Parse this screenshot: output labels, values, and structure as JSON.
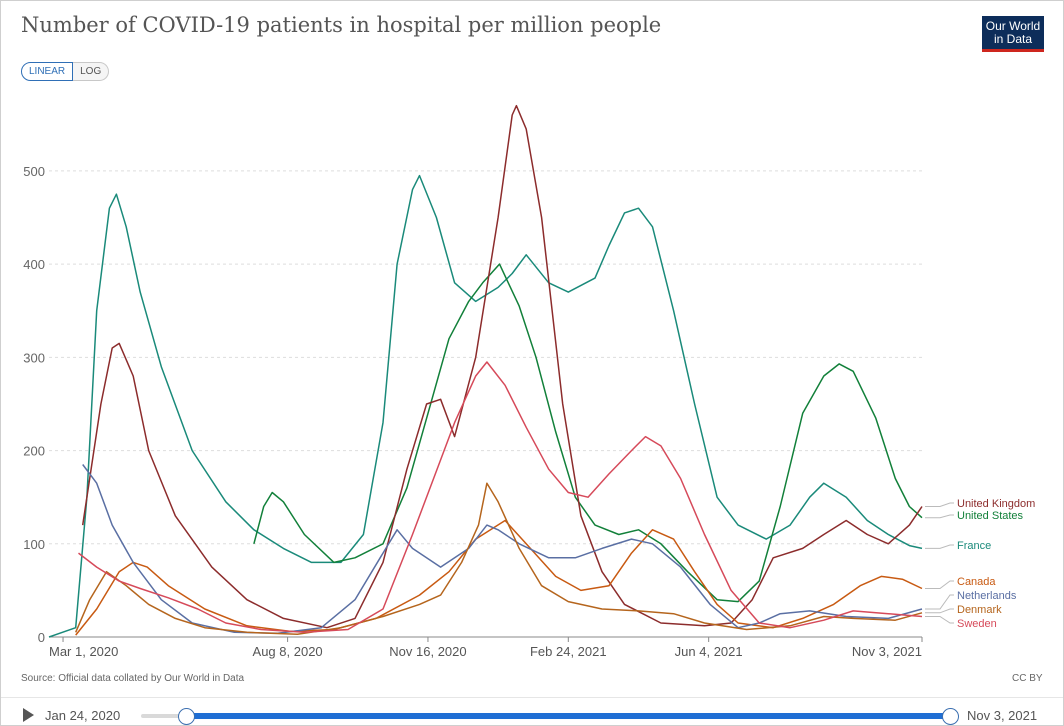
{
  "title": "Number of COVID-19 patients in hospital per million people",
  "logo": {
    "line1": "Our World",
    "line2": "in Data"
  },
  "scale_toggle": {
    "linear": "LINEAR",
    "log": "LOG",
    "selected": "LINEAR"
  },
  "source": "Source: Official data collated by Our World in Data",
  "license": "CC BY",
  "timeline": {
    "start_label": "Jan 24, 2020",
    "end_label": "Nov 3, 2021",
    "play_icon": "play-icon"
  },
  "colors": {
    "United Kingdom": "#8c2c2c",
    "United States": "#12803a",
    "France": "#1a8a7a",
    "Canada": "#c85a12",
    "Netherlands": "#5a6fa3",
    "Denmark": "#b5651d",
    "Sweden": "#d64a5a"
  },
  "chart_data": {
    "type": "line",
    "xlabel": "",
    "ylabel": "",
    "x_range": [
      "2020-02-20",
      "2021-11-03"
    ],
    "ylim": [
      0,
      575
    ],
    "yticks": [
      0,
      100,
      200,
      300,
      400,
      500
    ],
    "xticks": [
      "Mar 1, 2020",
      "Aug 8, 2020",
      "Nov 16, 2020",
      "Feb 24, 2021",
      "Jun 4, 2021",
      "Nov 3, 2021"
    ],
    "xtick_dates": [
      "2020-03-01",
      "2020-08-08",
      "2020-11-16",
      "2021-02-24",
      "2021-06-04",
      "2021-11-03"
    ],
    "grid": "horizontal dashed",
    "legend": "right, line-end labels",
    "series": [
      {
        "name": "France",
        "points": [
          [
            "2020-02-20",
            0
          ],
          [
            "2020-03-10",
            10
          ],
          [
            "2020-03-18",
            150
          ],
          [
            "2020-03-25",
            350
          ],
          [
            "2020-04-03",
            460
          ],
          [
            "2020-04-08",
            475
          ],
          [
            "2020-04-15",
            440
          ],
          [
            "2020-04-25",
            370
          ],
          [
            "2020-05-10",
            290
          ],
          [
            "2020-06-01",
            200
          ],
          [
            "2020-06-25",
            145
          ],
          [
            "2020-07-15",
            115
          ],
          [
            "2020-08-05",
            95
          ],
          [
            "2020-08-25",
            80
          ],
          [
            "2020-09-15",
            80
          ],
          [
            "2020-10-01",
            110
          ],
          [
            "2020-10-15",
            230
          ],
          [
            "2020-10-25",
            400
          ],
          [
            "2020-11-05",
            480
          ],
          [
            "2020-11-10",
            495
          ],
          [
            "2020-11-22",
            450
          ],
          [
            "2020-12-05",
            380
          ],
          [
            "2020-12-20",
            360
          ],
          [
            "2021-01-05",
            375
          ],
          [
            "2021-01-15",
            390
          ],
          [
            "2021-01-25",
            410
          ],
          [
            "2021-02-10",
            380
          ],
          [
            "2021-02-24",
            370
          ],
          [
            "2021-03-15",
            385
          ],
          [
            "2021-03-25",
            420
          ],
          [
            "2021-04-05",
            455
          ],
          [
            "2021-04-15",
            460
          ],
          [
            "2021-04-25",
            440
          ],
          [
            "2021-05-10",
            350
          ],
          [
            "2021-05-25",
            250
          ],
          [
            "2021-06-10",
            150
          ],
          [
            "2021-06-25",
            120
          ],
          [
            "2021-07-15",
            105
          ],
          [
            "2021-08-01",
            120
          ],
          [
            "2021-08-15",
            150
          ],
          [
            "2021-08-25",
            165
          ],
          [
            "2021-09-10",
            150
          ],
          [
            "2021-09-25",
            125
          ],
          [
            "2021-10-10",
            110
          ],
          [
            "2021-10-25",
            98
          ],
          [
            "2021-11-03",
            95
          ]
        ]
      },
      {
        "name": "United States",
        "points": [
          [
            "2020-07-15",
            100
          ],
          [
            "2020-07-22",
            140
          ],
          [
            "2020-07-28",
            155
          ],
          [
            "2020-08-05",
            145
          ],
          [
            "2020-08-20",
            110
          ],
          [
            "2020-09-10",
            80
          ],
          [
            "2020-09-25",
            85
          ],
          [
            "2020-10-15",
            100
          ],
          [
            "2020-11-01",
            160
          ],
          [
            "2020-11-16",
            240
          ],
          [
            "2020-12-01",
            320
          ],
          [
            "2020-12-15",
            360
          ],
          [
            "2020-12-25",
            380
          ],
          [
            "2021-01-06",
            400
          ],
          [
            "2021-01-20",
            355
          ],
          [
            "2021-02-01",
            300
          ],
          [
            "2021-02-15",
            220
          ],
          [
            "2021-03-01",
            150
          ],
          [
            "2021-03-15",
            120
          ],
          [
            "2021-04-01",
            110
          ],
          [
            "2021-04-15",
            115
          ],
          [
            "2021-05-01",
            100
          ],
          [
            "2021-05-20",
            70
          ],
          [
            "2021-06-10",
            40
          ],
          [
            "2021-06-25",
            38
          ],
          [
            "2021-07-10",
            60
          ],
          [
            "2021-07-25",
            140
          ],
          [
            "2021-08-10",
            240
          ],
          [
            "2021-08-25",
            280
          ],
          [
            "2021-09-05",
            293
          ],
          [
            "2021-09-15",
            285
          ],
          [
            "2021-10-01",
            235
          ],
          [
            "2021-10-15",
            170
          ],
          [
            "2021-10-25",
            140
          ],
          [
            "2021-11-03",
            128
          ]
        ]
      },
      {
        "name": "United Kingdom",
        "points": [
          [
            "2020-03-15",
            120
          ],
          [
            "2020-03-28",
            250
          ],
          [
            "2020-04-05",
            310
          ],
          [
            "2020-04-10",
            315
          ],
          [
            "2020-04-20",
            280
          ],
          [
            "2020-05-01",
            200
          ],
          [
            "2020-05-20",
            130
          ],
          [
            "2020-06-15",
            75
          ],
          [
            "2020-07-10",
            40
          ],
          [
            "2020-08-05",
            20
          ],
          [
            "2020-09-05",
            10
          ],
          [
            "2020-09-25",
            20
          ],
          [
            "2020-10-15",
            80
          ],
          [
            "2020-11-01",
            180
          ],
          [
            "2020-11-15",
            250
          ],
          [
            "2020-11-25",
            255
          ],
          [
            "2020-12-05",
            215
          ],
          [
            "2020-12-20",
            300
          ],
          [
            "2021-01-05",
            450
          ],
          [
            "2021-01-15",
            560
          ],
          [
            "2021-01-18",
            570
          ],
          [
            "2021-01-25",
            545
          ],
          [
            "2021-02-05",
            450
          ],
          [
            "2021-02-20",
            250
          ],
          [
            "2021-03-05",
            130
          ],
          [
            "2021-03-20",
            70
          ],
          [
            "2021-04-05",
            35
          ],
          [
            "2021-05-01",
            15
          ],
          [
            "2021-06-01",
            12
          ],
          [
            "2021-06-20",
            15
          ],
          [
            "2021-07-05",
            40
          ],
          [
            "2021-07-20",
            85
          ],
          [
            "2021-08-10",
            95
          ],
          [
            "2021-08-25",
            110
          ],
          [
            "2021-09-10",
            125
          ],
          [
            "2021-09-25",
            110
          ],
          [
            "2021-10-10",
            100
          ],
          [
            "2021-10-25",
            120
          ],
          [
            "2021-11-03",
            140
          ]
        ]
      },
      {
        "name": "Canada",
        "points": [
          [
            "2020-03-10",
            2
          ],
          [
            "2020-03-25",
            30
          ],
          [
            "2020-04-10",
            70
          ],
          [
            "2020-04-20",
            80
          ],
          [
            "2020-04-30",
            75
          ],
          [
            "2020-05-15",
            55
          ],
          [
            "2020-06-10",
            30
          ],
          [
            "2020-07-10",
            12
          ],
          [
            "2020-08-10",
            6
          ],
          [
            "2020-09-10",
            8
          ],
          [
            "2020-10-10",
            20
          ],
          [
            "2020-11-10",
            45
          ],
          [
            "2020-12-01",
            70
          ],
          [
            "2020-12-20",
            105
          ],
          [
            "2021-01-10",
            125
          ],
          [
            "2021-01-25",
            100
          ],
          [
            "2021-02-15",
            65
          ],
          [
            "2021-03-05",
            50
          ],
          [
            "2021-03-25",
            55
          ],
          [
            "2021-04-10",
            90
          ],
          [
            "2021-04-25",
            115
          ],
          [
            "2021-05-10",
            105
          ],
          [
            "2021-05-25",
            70
          ],
          [
            "2021-06-10",
            35
          ],
          [
            "2021-06-25",
            15
          ],
          [
            "2021-07-20",
            10
          ],
          [
            "2021-08-10",
            20
          ],
          [
            "2021-09-01",
            35
          ],
          [
            "2021-09-20",
            55
          ],
          [
            "2021-10-05",
            65
          ],
          [
            "2021-10-20",
            62
          ],
          [
            "2021-11-03",
            52
          ]
        ]
      },
      {
        "name": "Netherlands",
        "points": [
          [
            "2020-03-15",
            185
          ],
          [
            "2020-03-25",
            165
          ],
          [
            "2020-04-05",
            120
          ],
          [
            "2020-04-20",
            80
          ],
          [
            "2020-05-10",
            40
          ],
          [
            "2020-06-01",
            15
          ],
          [
            "2020-07-01",
            5
          ],
          [
            "2020-08-01",
            4
          ],
          [
            "2020-09-01",
            10
          ],
          [
            "2020-09-25",
            40
          ],
          [
            "2020-10-15",
            90
          ],
          [
            "2020-10-25",
            115
          ],
          [
            "2020-11-05",
            95
          ],
          [
            "2020-11-25",
            75
          ],
          [
            "2020-12-15",
            95
          ],
          [
            "2020-12-28",
            120
          ],
          [
            "2021-01-05",
            115
          ],
          [
            "2021-01-20",
            100
          ],
          [
            "2021-02-10",
            85
          ],
          [
            "2021-03-01",
            85
          ],
          [
            "2021-03-20",
            95
          ],
          [
            "2021-04-10",
            105
          ],
          [
            "2021-04-25",
            100
          ],
          [
            "2021-05-15",
            75
          ],
          [
            "2021-06-05",
            35
          ],
          [
            "2021-06-25",
            10
          ],
          [
            "2021-07-10",
            15
          ],
          [
            "2021-07-25",
            25
          ],
          [
            "2021-08-15",
            28
          ],
          [
            "2021-09-10",
            22
          ],
          [
            "2021-10-10",
            20
          ],
          [
            "2021-11-03",
            30
          ]
        ]
      },
      {
        "name": "Denmark",
        "points": [
          [
            "2020-03-10",
            5
          ],
          [
            "2020-03-20",
            40
          ],
          [
            "2020-04-01",
            70
          ],
          [
            "2020-04-15",
            55
          ],
          [
            "2020-05-01",
            35
          ],
          [
            "2020-05-20",
            20
          ],
          [
            "2020-06-10",
            10
          ],
          [
            "2020-07-10",
            5
          ],
          [
            "2020-08-15",
            3
          ],
          [
            "2020-09-15",
            10
          ],
          [
            "2020-10-15",
            22
          ],
          [
            "2020-11-10",
            35
          ],
          [
            "2020-11-25",
            45
          ],
          [
            "2020-12-10",
            80
          ],
          [
            "2020-12-22",
            120
          ],
          [
            "2020-12-28",
            165
          ],
          [
            "2021-01-05",
            145
          ],
          [
            "2021-01-20",
            95
          ],
          [
            "2021-02-05",
            55
          ],
          [
            "2021-02-24",
            38
          ],
          [
            "2021-03-20",
            30
          ],
          [
            "2021-04-15",
            28
          ],
          [
            "2021-05-10",
            25
          ],
          [
            "2021-06-01",
            15
          ],
          [
            "2021-07-01",
            8
          ],
          [
            "2021-08-01",
            12
          ],
          [
            "2021-08-25",
            22
          ],
          [
            "2021-09-15",
            20
          ],
          [
            "2021-10-15",
            18
          ],
          [
            "2021-11-03",
            26
          ]
        ]
      },
      {
        "name": "Sweden",
        "points": [
          [
            "2020-03-12",
            90
          ],
          [
            "2020-03-25",
            75
          ],
          [
            "2020-04-10",
            60
          ],
          [
            "2020-04-25",
            52
          ],
          [
            "2020-05-15",
            42
          ],
          [
            "2020-06-05",
            30
          ],
          [
            "2020-06-25",
            15
          ],
          [
            "2020-07-20",
            8
          ],
          [
            "2020-08-20",
            5
          ],
          [
            "2020-09-20",
            8
          ],
          [
            "2020-10-15",
            30
          ],
          [
            "2020-11-05",
            110
          ],
          [
            "2020-11-20",
            170
          ],
          [
            "2020-12-05",
            230
          ],
          [
            "2020-12-20",
            280
          ],
          [
            "2020-12-28",
            295
          ],
          [
            "2021-01-10",
            270
          ],
          [
            "2021-01-25",
            225
          ],
          [
            "2021-02-10",
            180
          ],
          [
            "2021-02-24",
            155
          ],
          [
            "2021-03-10",
            150
          ],
          [
            "2021-03-25",
            175
          ],
          [
            "2021-04-10",
            200
          ],
          [
            "2021-04-20",
            215
          ],
          [
            "2021-05-01",
            205
          ],
          [
            "2021-05-15",
            170
          ],
          [
            "2021-06-01",
            110
          ],
          [
            "2021-06-20",
            50
          ],
          [
            "2021-07-10",
            15
          ],
          [
            "2021-08-01",
            10
          ],
          [
            "2021-08-25",
            18
          ],
          [
            "2021-09-15",
            28
          ],
          [
            "2021-10-10",
            25
          ],
          [
            "2021-11-03",
            22
          ]
        ]
      }
    ],
    "end_labels": [
      "United Kingdom",
      "United States",
      "France",
      "Canada",
      "Netherlands",
      "Denmark",
      "Sweden"
    ]
  }
}
